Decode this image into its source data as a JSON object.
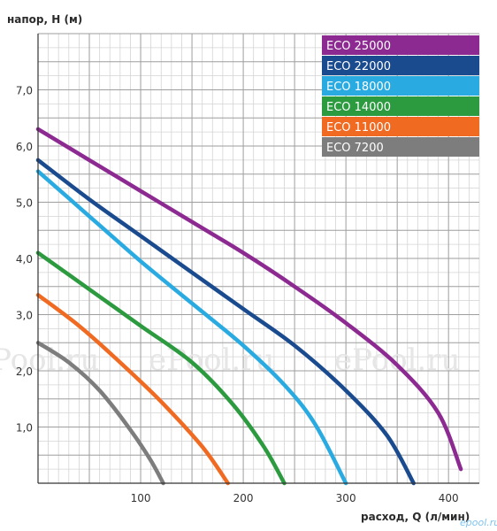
{
  "chart_data": {
    "type": "line",
    "ylabel": "напор, H (м)",
    "xlabel": "расход, Q (л/мин)",
    "xlim": [
      0,
      430
    ],
    "ylim": [
      0,
      8
    ],
    "x_ticks": [
      100,
      200,
      300,
      400
    ],
    "x_tick_labels": [
      "100",
      "200",
      "300",
      "400"
    ],
    "y_ticks": [
      1,
      2,
      3,
      4,
      5,
      6,
      7
    ],
    "y_tick_labels": [
      "1,0",
      "2,0",
      "3,0",
      "4,0",
      "5,0",
      "6,0",
      "7,0"
    ],
    "grid": true,
    "legend_position": "top-right",
    "series": [
      {
        "name": "ECO 25000",
        "color": "#8d2a92",
        "points": [
          [
            0,
            6.3
          ],
          [
            50,
            5.75
          ],
          [
            100,
            5.2
          ],
          [
            150,
            4.65
          ],
          [
            200,
            4.1
          ],
          [
            250,
            3.5
          ],
          [
            300,
            2.85
          ],
          [
            350,
            2.1
          ],
          [
            390,
            1.25
          ],
          [
            412,
            0.25
          ]
        ]
      },
      {
        "name": "ECO 22000",
        "color": "#1a4b8f",
        "points": [
          [
            0,
            5.75
          ],
          [
            50,
            5.05
          ],
          [
            100,
            4.4
          ],
          [
            150,
            3.75
          ],
          [
            200,
            3.1
          ],
          [
            250,
            2.45
          ],
          [
            300,
            1.65
          ],
          [
            340,
            0.85
          ],
          [
            366,
            0.0
          ]
        ]
      },
      {
        "name": "ECO 18000",
        "color": "#29abe2",
        "points": [
          [
            0,
            5.55
          ],
          [
            50,
            4.75
          ],
          [
            100,
            3.95
          ],
          [
            150,
            3.2
          ],
          [
            200,
            2.45
          ],
          [
            240,
            1.75
          ],
          [
            270,
            1.05
          ],
          [
            300,
            0.0
          ]
        ]
      },
      {
        "name": "ECO 14000",
        "color": "#2c9a3f",
        "points": [
          [
            0,
            4.1
          ],
          [
            50,
            3.45
          ],
          [
            100,
            2.8
          ],
          [
            150,
            2.15
          ],
          [
            190,
            1.4
          ],
          [
            220,
            0.65
          ],
          [
            240,
            0.0
          ]
        ]
      },
      {
        "name": "ECO 11000",
        "color": "#f06a22",
        "points": [
          [
            0,
            3.35
          ],
          [
            40,
            2.8
          ],
          [
            80,
            2.15
          ],
          [
            120,
            1.45
          ],
          [
            160,
            0.65
          ],
          [
            185,
            0.0
          ]
        ]
      },
      {
        "name": "ECO 7200",
        "color": "#7d7d7d",
        "points": [
          [
            0,
            2.5
          ],
          [
            30,
            2.15
          ],
          [
            60,
            1.65
          ],
          [
            90,
            0.95
          ],
          [
            110,
            0.4
          ],
          [
            122,
            0.0
          ]
        ]
      }
    ]
  },
  "watermarks": [
    "ePool.ru",
    "ePool.ru",
    "ePool.ru"
  ],
  "brand_mark": "epool.ru"
}
